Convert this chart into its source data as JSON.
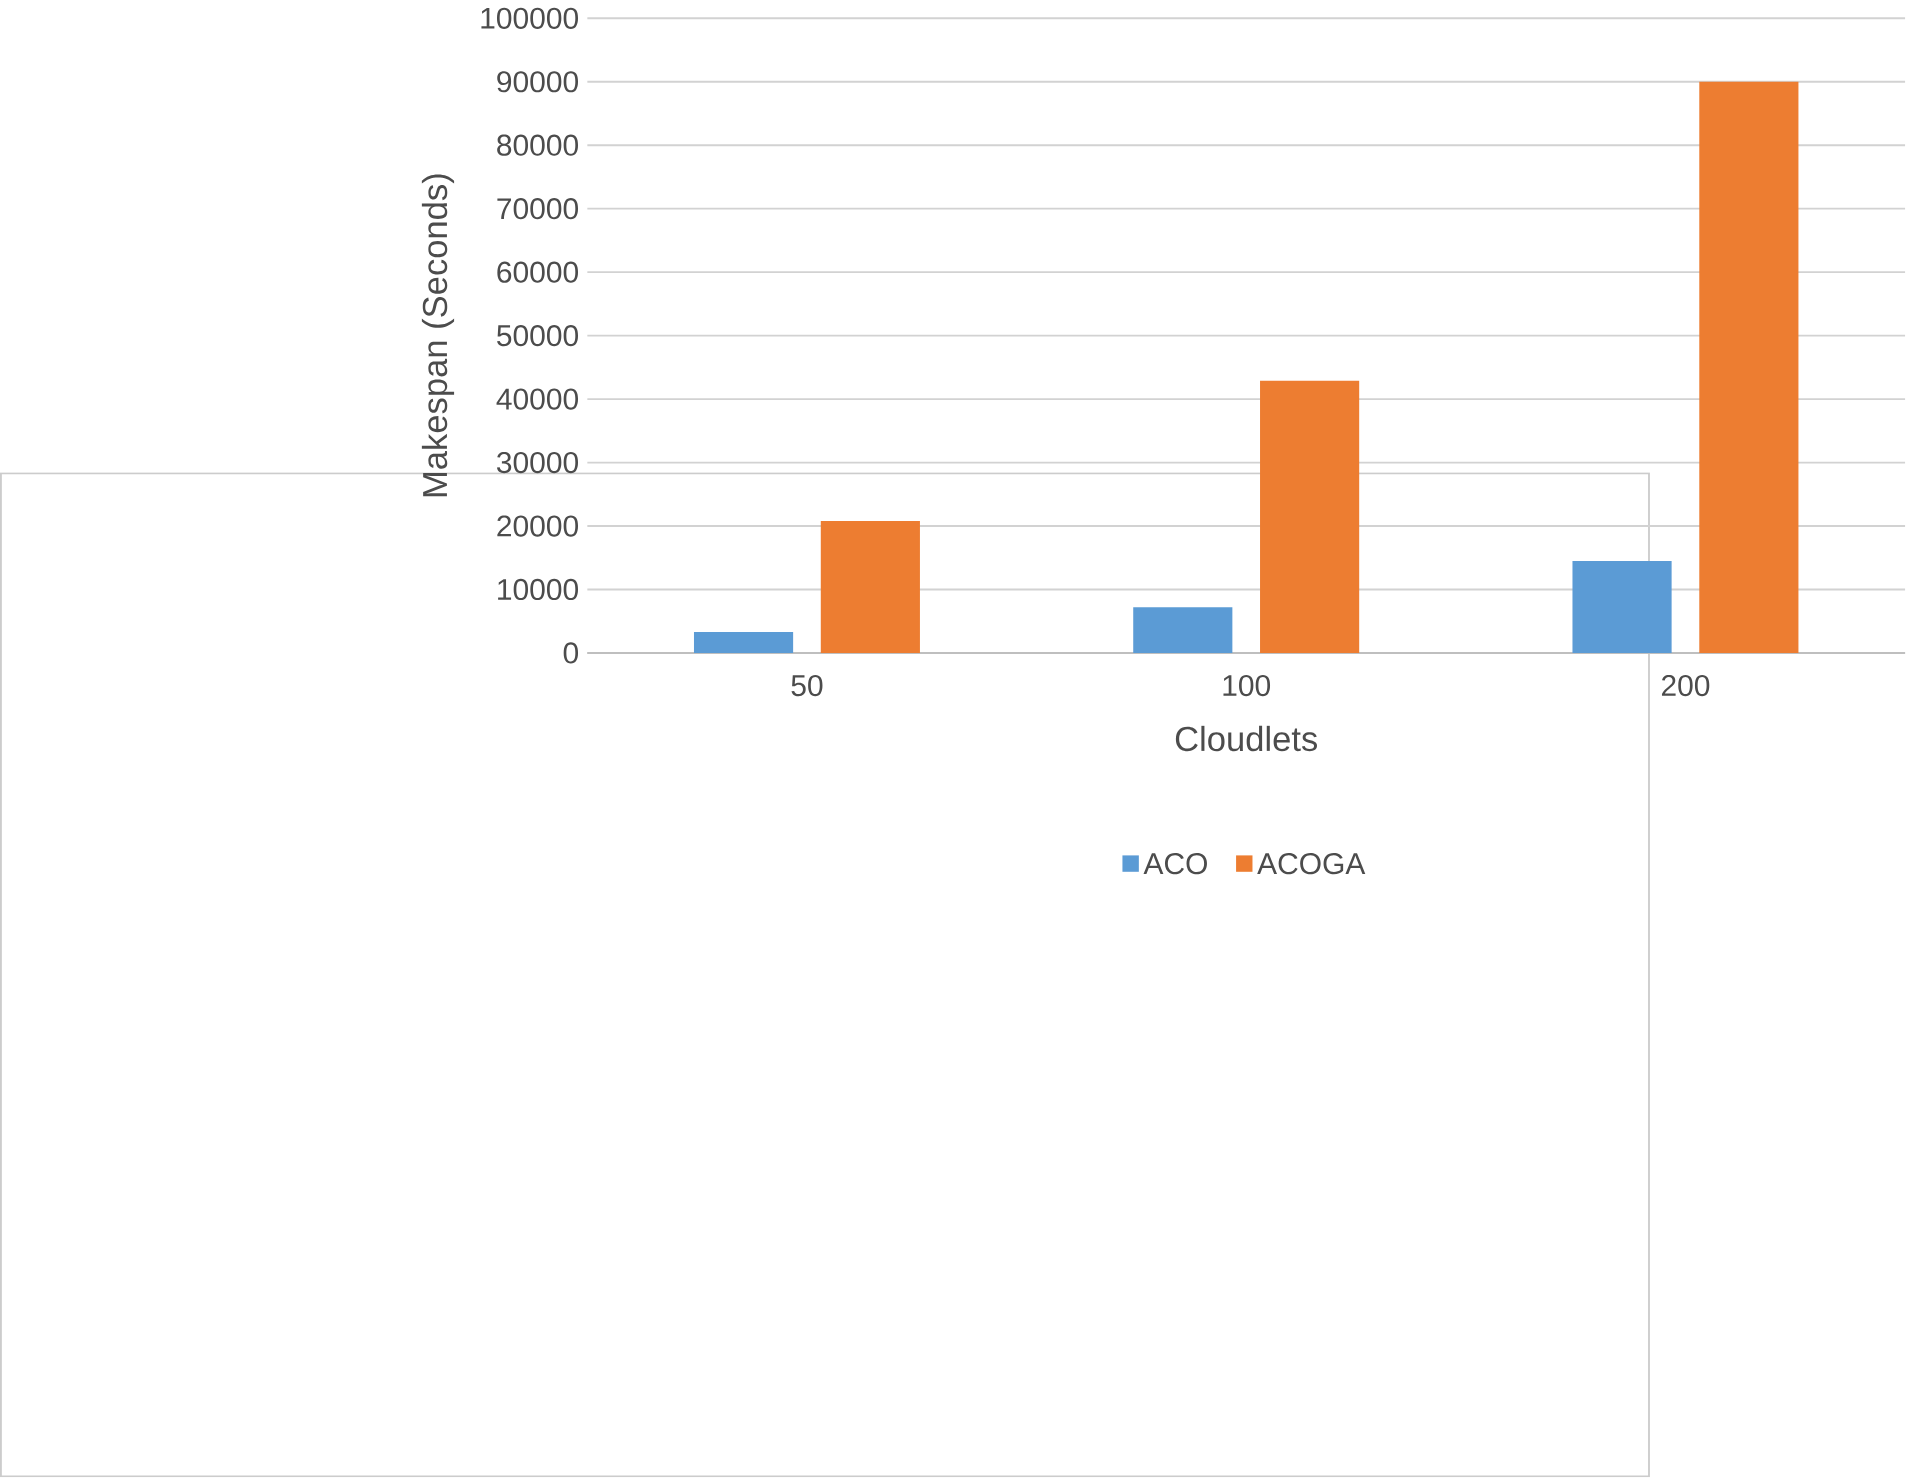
{
  "chart_data": {
    "type": "bar",
    "xlabel": "Cloudlets",
    "ylabel": "Makespan (Seconds)",
    "categories": [
      "50",
      "100",
      "200"
    ],
    "series": [
      {
        "name": "ACO",
        "color": "#5b9bd5",
        "values": [
          3300,
          7200,
          14500
        ]
      },
      {
        "name": "ACOGA",
        "color": "#ed7d31",
        "values": [
          20800,
          42900,
          90000
        ]
      }
    ],
    "ylim": [
      0,
      100000
    ],
    "yticks": [
      0,
      10000,
      20000,
      30000,
      40000,
      50000,
      60000,
      70000,
      80000,
      90000,
      100000
    ],
    "grid": "y",
    "legend": "bottom"
  }
}
